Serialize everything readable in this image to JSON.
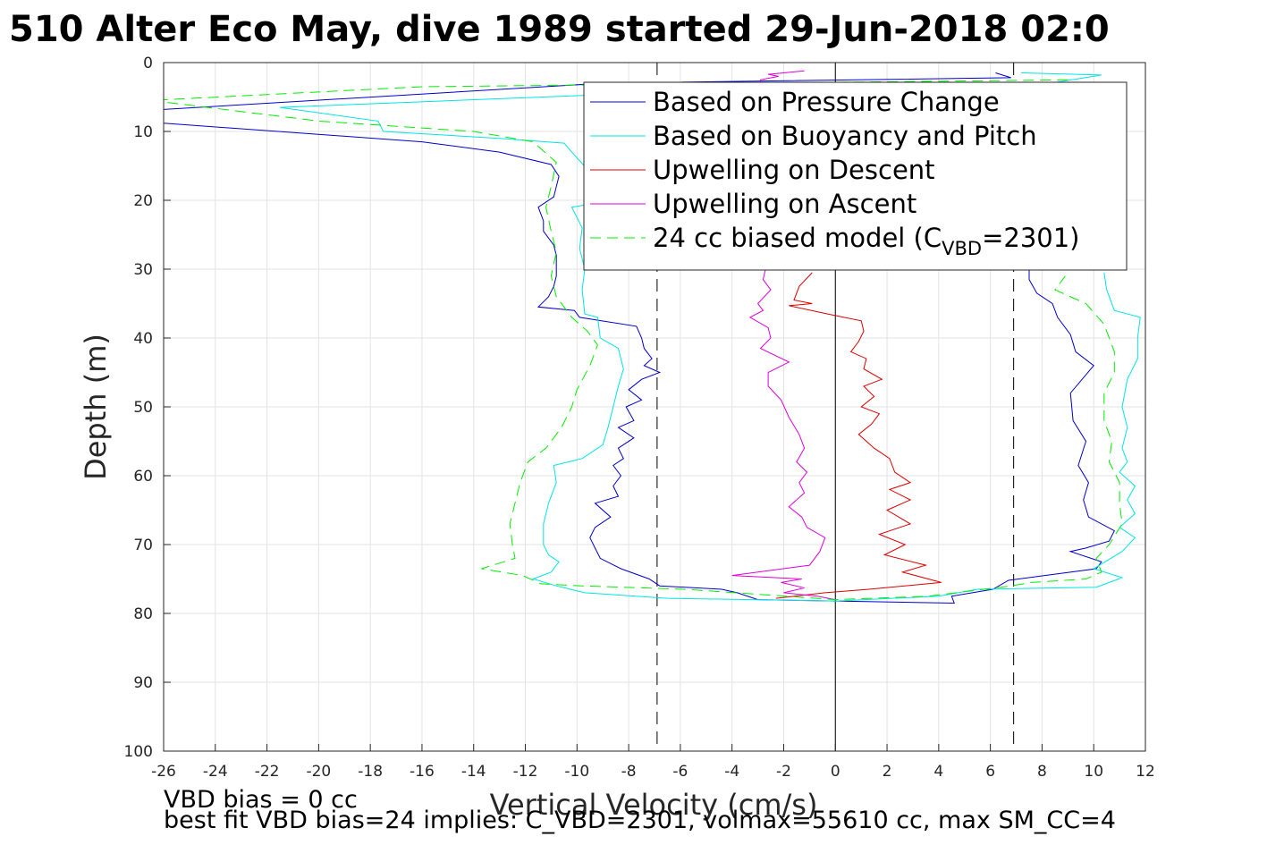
{
  "chart_data": {
    "type": "line",
    "title": "510 Alter Eco May, dive 1989 started 29-Jun-2018 02:0",
    "xlabel": "Vertical Velocity (cm/s)",
    "ylabel": "Depth (m)",
    "xlim": [
      -26,
      12
    ],
    "ylim": [
      0,
      100
    ],
    "y_reversed": true,
    "grid": true,
    "xticks": [
      -26,
      -24,
      -22,
      -20,
      -18,
      -16,
      -14,
      -12,
      -10,
      -8,
      -6,
      -4,
      -2,
      0,
      2,
      4,
      6,
      8,
      10,
      12
    ],
    "yticks": [
      0,
      10,
      20,
      30,
      40,
      50,
      60,
      70,
      80,
      90,
      100
    ],
    "legend_position": "top-right",
    "vertical_lines": [
      {
        "x": 0,
        "style": "solid",
        "color": "#000000"
      },
      {
        "x": -6.9,
        "style": "dashed",
        "color": "#000000"
      },
      {
        "x": 6.9,
        "style": "dashed",
        "color": "#000000"
      }
    ],
    "series": [
      {
        "name": "Based on Pressure Change",
        "color": "#0000cc",
        "dash": "solid",
        "points": [
          [
            6.2,
            1.5
          ],
          [
            6.8,
            2.2
          ],
          [
            -9,
            3
          ],
          [
            -26,
            6.8
          ],
          [
            -26,
            8.8
          ],
          [
            -16,
            11.5
          ],
          [
            -13,
            13
          ],
          [
            -11,
            14.8
          ],
          [
            -10.7,
            16.5
          ],
          [
            -10.9,
            19.5
          ],
          [
            -11.5,
            21
          ],
          [
            -11.3,
            23
          ],
          [
            -11.3,
            24.5
          ],
          [
            -10.9,
            26.5
          ],
          [
            -10.8,
            28
          ],
          [
            -10.8,
            31
          ],
          [
            -10.9,
            32.5
          ],
          [
            -11.1,
            34
          ],
          [
            -11.5,
            35.5
          ],
          [
            -10.1,
            36
          ],
          [
            -9.9,
            37
          ],
          [
            -7.7,
            38.3
          ],
          [
            -7.5,
            40
          ],
          [
            -7.4,
            41.5
          ],
          [
            -7.1,
            43
          ],
          [
            -7.4,
            44
          ],
          [
            -6.8,
            45
          ],
          [
            -7.5,
            46
          ],
          [
            -8,
            47.5
          ],
          [
            -7.5,
            49
          ],
          [
            -8.1,
            50
          ],
          [
            -7.8,
            52
          ],
          [
            -8.4,
            53
          ],
          [
            -7.8,
            54.5
          ],
          [
            -8.4,
            56
          ],
          [
            -8.2,
            57.5
          ],
          [
            -8.6,
            58.5
          ],
          [
            -8.3,
            60
          ],
          [
            -8.6,
            61.5
          ],
          [
            -8.4,
            63
          ],
          [
            -9.3,
            64
          ],
          [
            -8.7,
            66
          ],
          [
            -9.3,
            67.5
          ],
          [
            -9.5,
            69
          ],
          [
            -9.3,
            70.5
          ],
          [
            -9.1,
            72
          ],
          [
            -8.3,
            73.5
          ],
          [
            -7.2,
            75
          ],
          [
            -6.8,
            76
          ],
          [
            -4.4,
            76.5
          ],
          [
            -3.8,
            77
          ],
          [
            -3,
            78
          ],
          [
            0,
            78.2
          ],
          [
            4.6,
            78.5
          ],
          [
            4.5,
            77.5
          ],
          [
            6.1,
            76.5
          ],
          [
            6.7,
            75.2
          ],
          [
            10.1,
            73.5
          ],
          [
            10.3,
            72.5
          ],
          [
            9.1,
            71
          ],
          [
            9.7,
            70.5
          ],
          [
            10.6,
            69.5
          ],
          [
            10.8,
            68
          ],
          [
            9.8,
            66
          ],
          [
            9.6,
            63.5
          ],
          [
            9.8,
            61
          ],
          [
            9.4,
            58.5
          ],
          [
            9.7,
            55
          ],
          [
            9.2,
            52
          ],
          [
            9.1,
            48
          ],
          [
            10,
            44
          ],
          [
            9.3,
            42
          ],
          [
            9.1,
            39.5
          ],
          [
            8.6,
            37
          ],
          [
            8.4,
            35
          ],
          [
            7.8,
            33.5
          ],
          [
            7.5,
            31.5
          ],
          [
            7.5,
            28.5
          ]
        ]
      },
      {
        "name": "Based on Buoyancy and Pitch",
        "color": "#00e5e5",
        "dash": "solid",
        "points": [
          [
            7.2,
            1.5
          ],
          [
            10.3,
            1.8
          ],
          [
            8,
            3.2
          ],
          [
            -8,
            4.5
          ],
          [
            -21.5,
            6.5
          ],
          [
            -17.7,
            8.5
          ],
          [
            -17.5,
            10
          ],
          [
            -13,
            11
          ],
          [
            -10.5,
            11.7
          ],
          [
            -10.2,
            13
          ],
          [
            -9.6,
            15.5
          ],
          [
            -9.3,
            18
          ],
          [
            -9.4,
            20.5
          ],
          [
            -10.2,
            21
          ],
          [
            -9.8,
            24
          ],
          [
            -9.9,
            27
          ],
          [
            -9.7,
            30
          ],
          [
            -9.8,
            33
          ],
          [
            -9.7,
            36.5
          ],
          [
            -9.2,
            37
          ],
          [
            -9.1,
            40
          ],
          [
            -8.4,
            41.5
          ],
          [
            -8.2,
            44.5
          ],
          [
            -8.4,
            47
          ],
          [
            -8.6,
            50
          ],
          [
            -8.8,
            53
          ],
          [
            -9,
            55.5
          ],
          [
            -9.8,
            57.5
          ],
          [
            -10.9,
            58.5
          ],
          [
            -10.8,
            61
          ],
          [
            -11.1,
            64
          ],
          [
            -11.3,
            67
          ],
          [
            -11.3,
            70
          ],
          [
            -11.1,
            71.5
          ],
          [
            -10.7,
            72.5
          ],
          [
            -11,
            74
          ],
          [
            -11.7,
            75
          ],
          [
            -10.8,
            76
          ],
          [
            -9.7,
            77
          ],
          [
            -6.5,
            77.8
          ],
          [
            0,
            78.2
          ],
          [
            4,
            77.5
          ],
          [
            5.5,
            76.5
          ],
          [
            10.1,
            76.2
          ],
          [
            11.1,
            74.8
          ],
          [
            10,
            73.5
          ],
          [
            11.1,
            71
          ],
          [
            11.6,
            69
          ],
          [
            11,
            67.5
          ],
          [
            11.6,
            65.5
          ],
          [
            11.3,
            63.5
          ],
          [
            11.6,
            61.5
          ],
          [
            11,
            59.5
          ],
          [
            11.3,
            58
          ],
          [
            11.1,
            56
          ],
          [
            11.3,
            53
          ],
          [
            11.1,
            50
          ],
          [
            11.3,
            46
          ],
          [
            11.7,
            43
          ],
          [
            11.7,
            40
          ],
          [
            11.8,
            37
          ],
          [
            10.8,
            36
          ],
          [
            10.5,
            33
          ],
          [
            10.4,
            30.5
          ]
        ]
      },
      {
        "name": "Upwelling on Descent",
        "color": "#dd0000",
        "dash": "solid",
        "points": [
          [
            -0.9,
            30.5
          ],
          [
            -1.4,
            32.5
          ],
          [
            -1.6,
            34.5
          ],
          [
            -0.9,
            35
          ],
          [
            -1.8,
            35.3
          ],
          [
            -0.3,
            36.5
          ],
          [
            1,
            37.5
          ],
          [
            1.1,
            39
          ],
          [
            0.9,
            40.5
          ],
          [
            0.6,
            42
          ],
          [
            1.2,
            43
          ],
          [
            1.1,
            44.5
          ],
          [
            1.8,
            46
          ],
          [
            1.1,
            47
          ],
          [
            1.5,
            48.5
          ],
          [
            1,
            50
          ],
          [
            1.7,
            51
          ],
          [
            1.4,
            52.5
          ],
          [
            0.9,
            54
          ],
          [
            1.5,
            56
          ],
          [
            2.1,
            57.5
          ],
          [
            2.3,
            59.5
          ],
          [
            2.9,
            61
          ],
          [
            2.1,
            62
          ],
          [
            2.9,
            63.5
          ],
          [
            2,
            65
          ],
          [
            2.9,
            67
          ],
          [
            1.7,
            68.5
          ],
          [
            2.7,
            70
          ],
          [
            1.9,
            71.5
          ],
          [
            3.5,
            73
          ],
          [
            2.6,
            74
          ],
          [
            4.1,
            75.5
          ],
          [
            1.3,
            76.5
          ],
          [
            -0.4,
            77
          ],
          [
            -2.3,
            77.8
          ]
        ]
      },
      {
        "name": "Upwelling on Ascent",
        "color": "#dd00dd",
        "dash": "solid",
        "points": [
          [
            -1.2,
            1.2
          ],
          [
            -2,
            1.5
          ],
          [
            -2.6,
            1.7
          ],
          [
            -2.2,
            2
          ],
          [
            -2.9,
            2.5
          ],
          [
            -2.7,
            30
          ],
          [
            -2.8,
            31.5
          ],
          [
            -2.5,
            33
          ],
          [
            -3,
            35
          ],
          [
            -2.8,
            36
          ],
          [
            -3.3,
            37
          ],
          [
            -2.6,
            38.5
          ],
          [
            -2.5,
            40
          ],
          [
            -2.9,
            41.5
          ],
          [
            -1.8,
            43.5
          ],
          [
            -2.6,
            45
          ],
          [
            -2.6,
            47
          ],
          [
            -2.1,
            49
          ],
          [
            -1.8,
            51.5
          ],
          [
            -1.4,
            54
          ],
          [
            -1.2,
            56
          ],
          [
            -1.5,
            58
          ],
          [
            -1.1,
            59.5
          ],
          [
            -1.4,
            61
          ],
          [
            -1.2,
            62.5
          ],
          [
            -1.8,
            64.5
          ],
          [
            -1.3,
            66
          ],
          [
            -1.1,
            67.5
          ],
          [
            -0.4,
            69
          ],
          [
            -0.6,
            71
          ],
          [
            -1,
            73
          ],
          [
            -4,
            74.5
          ],
          [
            -1.3,
            75
          ],
          [
            -2.1,
            75.5
          ],
          [
            -1.2,
            76.3
          ],
          [
            -2,
            77
          ],
          [
            -0.7,
            77.5
          ],
          [
            0,
            78
          ]
        ]
      },
      {
        "name": "24 cc biased model (C",
        "color": "#00ee00",
        "dash": "dashed",
        "points": [
          [
            9,
            2.5
          ],
          [
            -16,
            3.5
          ],
          [
            -26.5,
            5.5
          ],
          [
            -20,
            8.5
          ],
          [
            -14,
            10
          ],
          [
            -11.7,
            11.5
          ],
          [
            -10.8,
            14.5
          ],
          [
            -11,
            18
          ],
          [
            -11.2,
            21
          ],
          [
            -11,
            24.5
          ],
          [
            -10.8,
            27.5
          ],
          [
            -11,
            31
          ],
          [
            -10.8,
            34
          ],
          [
            -10.2,
            37
          ],
          [
            -9.6,
            39
          ],
          [
            -9.2,
            41
          ],
          [
            -9.5,
            44
          ],
          [
            -10,
            47.5
          ],
          [
            -10.2,
            50
          ],
          [
            -10.6,
            53
          ],
          [
            -11.2,
            56
          ],
          [
            -11.9,
            58
          ],
          [
            -12.2,
            61
          ],
          [
            -12.4,
            64
          ],
          [
            -12.6,
            67
          ],
          [
            -12.5,
            70
          ],
          [
            -12.4,
            72
          ],
          [
            -13.7,
            73.5
          ],
          [
            -12.1,
            74.5
          ],
          [
            -11.4,
            75.7
          ],
          [
            -9.8,
            76
          ],
          [
            -5.8,
            76.5
          ],
          [
            0,
            78
          ],
          [
            3.6,
            77.5
          ],
          [
            6.8,
            76
          ],
          [
            7.6,
            75.5
          ],
          [
            9.7,
            75
          ],
          [
            10.3,
            74
          ],
          [
            10.1,
            72
          ],
          [
            10.6,
            70
          ],
          [
            11.1,
            67
          ],
          [
            11,
            64
          ],
          [
            11,
            61
          ],
          [
            10.6,
            58
          ],
          [
            10.7,
            55
          ],
          [
            10.4,
            52
          ],
          [
            10.4,
            48
          ],
          [
            10.8,
            45
          ],
          [
            10.8,
            42
          ],
          [
            10.4,
            38
          ],
          [
            9.7,
            35
          ],
          [
            8.5,
            33
          ],
          [
            8.9,
            31
          ]
        ]
      }
    ],
    "legend": {
      "entries": [
        {
          "label": "Based on Pressure Change"
        },
        {
          "label": "Based on Buoyancy and Pitch"
        },
        {
          "label": "Upwelling on Descent"
        },
        {
          "label": "Upwelling on Ascent"
        },
        {
          "label": "24 cc biased model (C",
          "sub": "VBD",
          "suffix": "=2301)"
        }
      ]
    },
    "annotations": [
      "VBD bias = 0 cc",
      "best fit VBD bias=24 implies: C_VBD=2301, volmax=55610 cc, max SM_CC=4"
    ]
  }
}
